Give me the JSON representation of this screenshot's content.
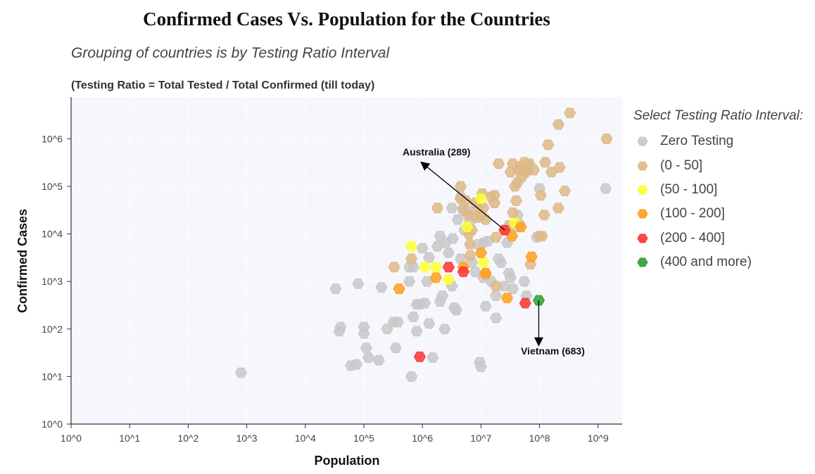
{
  "chart_data": {
    "type": "scatter",
    "title": "Confirmed Cases Vs. Population for the Countries",
    "subtitle": "Grouping of countries is by Testing Ratio Interval",
    "note": "(Testing Ratio = Total Tested / Total Confirmed (till today)",
    "xlabel": "Population",
    "ylabel": "Confirmed Cases",
    "x_scale": "log",
    "y_scale": "log",
    "xlim": [
      1,
      2000000000
    ],
    "ylim": [
      1,
      7000000
    ],
    "x_ticks": [
      "10^0",
      "10^1",
      "10^2",
      "10^3",
      "10^4",
      "10^5",
      "10^6",
      "10^7",
      "10^8",
      "10^9"
    ],
    "y_ticks": [
      "10^0",
      "10^1",
      "10^2",
      "10^3",
      "10^4",
      "10^5",
      "10^6"
    ],
    "grid": true,
    "legend_title": "Select Testing Ratio Interval:",
    "legend_position": "right",
    "series": [
      {
        "name": "Zero Testing",
        "color": "#c8c8c8",
        "points": [
          [
            800,
            12
          ],
          [
            33000,
            700
          ],
          [
            38000,
            90
          ],
          [
            40000,
            110
          ],
          [
            60000,
            17
          ],
          [
            75000,
            18
          ],
          [
            80000,
            900
          ],
          [
            100000,
            110
          ],
          [
            100000,
            80
          ],
          [
            110000,
            40
          ],
          [
            120000,
            25
          ],
          [
            180000,
            22
          ],
          [
            200000,
            750
          ],
          [
            250000,
            100
          ],
          [
            320000,
            140
          ],
          [
            350000,
            40
          ],
          [
            380000,
            140
          ],
          [
            600000,
            1000
          ],
          [
            600000,
            2000
          ],
          [
            650000,
            10
          ],
          [
            700000,
            2000
          ],
          [
            700000,
            180
          ],
          [
            800000,
            90
          ],
          [
            800000,
            330
          ],
          [
            900000,
            330
          ],
          [
            1100000,
            350
          ],
          [
            1000000,
            5000
          ],
          [
            1200000,
            1000
          ],
          [
            1300000,
            130
          ],
          [
            1300000,
            3200
          ],
          [
            1500000,
            25
          ],
          [
            1800000,
            5500
          ],
          [
            2000000,
            9000
          ],
          [
            2000000,
            380
          ],
          [
            2200000,
            500
          ],
          [
            2400000,
            100
          ],
          [
            2500000,
            6500
          ],
          [
            2800000,
            4000
          ],
          [
            3200000,
            35000
          ],
          [
            3300000,
            8000
          ],
          [
            3200000,
            800
          ],
          [
            3500000,
            280
          ],
          [
            3800000,
            250
          ],
          [
            4000000,
            20000
          ],
          [
            4500000,
            3000
          ],
          [
            4500000,
            60000
          ],
          [
            5000000,
            30000
          ],
          [
            5200000,
            12000
          ],
          [
            6000000,
            30000
          ],
          [
            6500000,
            18000
          ],
          [
            7000000,
            2500
          ],
          [
            8000000,
            1600
          ],
          [
            8000000,
            25000
          ],
          [
            9000000,
            6000
          ],
          [
            9500000,
            20
          ],
          [
            10000000,
            16
          ],
          [
            11000000,
            1200
          ],
          [
            11000000,
            6500
          ],
          [
            12000000,
            300
          ],
          [
            13000000,
            7000
          ],
          [
            15000000,
            1000
          ],
          [
            18000000,
            170
          ],
          [
            18000000,
            500
          ],
          [
            20000000,
            3000
          ],
          [
            22000000,
            2500
          ],
          [
            25000000,
            800
          ],
          [
            28000000,
            6500
          ],
          [
            30000000,
            1500
          ],
          [
            32000000,
            1200
          ],
          [
            35000000,
            700
          ],
          [
            40000000,
            14000
          ],
          [
            42000000,
            25000
          ],
          [
            45000000,
            16000
          ],
          [
            55000000,
            1000
          ],
          [
            60000000,
            500
          ],
          [
            90000000,
            8500
          ],
          [
            100000000,
            90000
          ],
          [
            1350000000,
            90000
          ]
        ]
      },
      {
        "name": "(0 - 50]",
        "color": "#deb887",
        "points": [
          [
            330000,
            2000
          ],
          [
            650000,
            3000
          ],
          [
            1800000,
            35000
          ],
          [
            4500000,
            100000
          ],
          [
            4500000,
            55000
          ],
          [
            5000000,
            35000
          ],
          [
            5500000,
            50000
          ],
          [
            6000000,
            25000
          ],
          [
            6200000,
            10000
          ],
          [
            6500000,
            6000
          ],
          [
            6500000,
            3500
          ],
          [
            7000000,
            12000
          ],
          [
            8000000,
            45000
          ],
          [
            8500000,
            22000
          ],
          [
            9000000,
            35000
          ],
          [
            10000000,
            25000
          ],
          [
            10500000,
            70000
          ],
          [
            11000000,
            35000
          ],
          [
            12000000,
            1400
          ],
          [
            12000000,
            20000
          ],
          [
            15000000,
            60000
          ],
          [
            17000000,
            45000
          ],
          [
            17000000,
            65000
          ],
          [
            18000000,
            800
          ],
          [
            18000000,
            8500
          ],
          [
            20000000,
            300000
          ],
          [
            25000000,
            12000
          ],
          [
            30000000,
            15000
          ],
          [
            32000000,
            200000
          ],
          [
            35000000,
            28000
          ],
          [
            35000000,
            300000
          ],
          [
            38000000,
            100000
          ],
          [
            40000000,
            50000
          ],
          [
            42000000,
            120000
          ],
          [
            45000000,
            220000
          ],
          [
            47000000,
            260000
          ],
          [
            50000000,
            160000
          ],
          [
            55000000,
            320000
          ],
          [
            58000000,
            200000
          ],
          [
            60000000,
            250000
          ],
          [
            62000000,
            220000
          ],
          [
            65000000,
            280000
          ],
          [
            67000000,
            300000
          ],
          [
            70000000,
            2300
          ],
          [
            80000000,
            220000
          ],
          [
            100000000,
            9000
          ],
          [
            105000000,
            65000
          ],
          [
            110000000,
            9000
          ],
          [
            120000000,
            25000
          ],
          [
            125000000,
            320000
          ],
          [
            140000000,
            750000
          ],
          [
            160000000,
            200000
          ],
          [
            210000000,
            35000
          ],
          [
            210000000,
            2000000
          ],
          [
            220000000,
            250000
          ],
          [
            270000000,
            80000
          ],
          [
            330000000,
            3500000
          ],
          [
            1400000000,
            1000000
          ]
        ]
      },
      {
        "name": "(50 - 100]",
        "color": "#ffff33",
        "points": [
          [
            650000,
            5500
          ],
          [
            1100000,
            2000
          ],
          [
            1700000,
            2000
          ],
          [
            2800000,
            1100
          ],
          [
            5800000,
            14000
          ],
          [
            10000000,
            55000
          ],
          [
            11000000,
            2500
          ],
          [
            38000000,
            17000
          ]
        ]
      },
      {
        "name": "(100 - 200]",
        "color": "#ff9f1a",
        "points": [
          [
            400000,
            700
          ],
          [
            1700000,
            1200
          ],
          [
            5000000,
            2000
          ],
          [
            10000000,
            4000
          ],
          [
            12000000,
            1500
          ],
          [
            28000000,
            450
          ],
          [
            34000000,
            9000
          ],
          [
            48000000,
            14000
          ],
          [
            73000000,
            3300
          ]
        ]
      },
      {
        "name": "(200 - 400]",
        "color": "#ff3333",
        "points": [
          [
            900000,
            26
          ],
          [
            2800000,
            2000
          ],
          [
            5000000,
            1600
          ],
          [
            25500000,
            12000
          ],
          [
            57000000,
            350
          ]
        ]
      },
      {
        "name": "(400 and more)",
        "color": "#2ca02c",
        "points": [
          [
            97000000,
            400
          ]
        ]
      }
    ],
    "annotations": [
      {
        "text": "Australia (289)",
        "point": [
          25500000,
          12000
        ]
      },
      {
        "text": "Vietnam (683)",
        "point": [
          97000000,
          400
        ]
      }
    ]
  }
}
